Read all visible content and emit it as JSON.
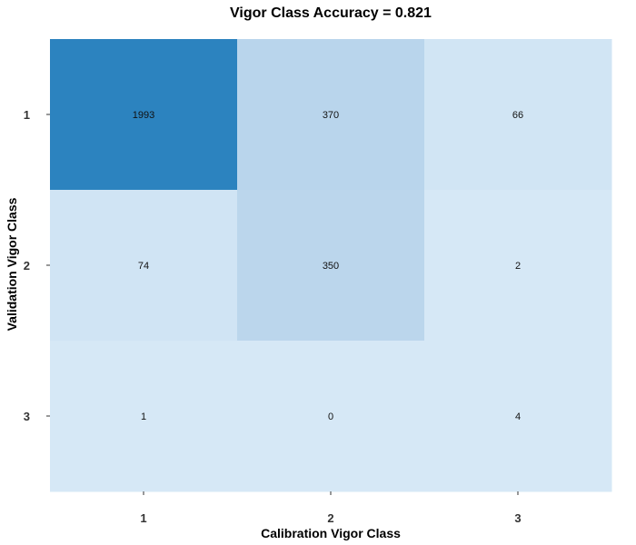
{
  "chart_data": {
    "type": "heatmap",
    "title": "Vigor Class  Accuracy =  0.821",
    "xlabel": "Calibration  Vigor Class",
    "ylabel": "Validation  Vigor Class",
    "x_categories": [
      "1",
      "2",
      "3"
    ],
    "y_categories": [
      "1",
      "2",
      "3"
    ],
    "values": [
      [
        1993,
        370,
        66
      ],
      [
        74,
        350,
        2
      ],
      [
        1,
        0,
        4
      ]
    ],
    "cell_labels": [
      [
        "1993",
        "370",
        "66"
      ],
      [
        "74",
        "350",
        "2"
      ],
      [
        "1",
        "0",
        "4"
      ]
    ],
    "colors": {
      "low": "#d6e8f6",
      "mid": "#bad6ec",
      "high": "#2c83bf",
      "background": "#ffffff"
    },
    "grid": false,
    "legend": "none"
  }
}
